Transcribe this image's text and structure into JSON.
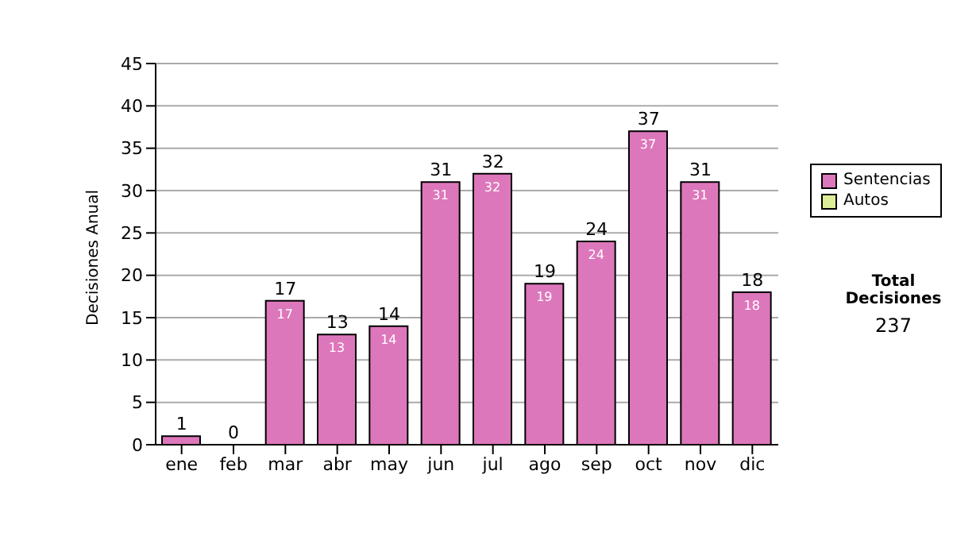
{
  "chart_data": {
    "type": "bar",
    "ylabel": "Decisiones Anual",
    "categories": [
      "ene",
      "feb",
      "mar",
      "abr",
      "may",
      "jun",
      "jul",
      "ago",
      "sep",
      "oct",
      "nov",
      "dic"
    ],
    "series": [
      {
        "name": "Sentencias",
        "color": "#dd77bb",
        "values": [
          1,
          0,
          17,
          13,
          14,
          31,
          32,
          19,
          24,
          37,
          31,
          18
        ],
        "value_labels": [
          null,
          null,
          "17",
          "13",
          "14",
          "31",
          "32",
          "19",
          "24",
          "37",
          "31",
          "18"
        ]
      },
      {
        "name": "Autos",
        "color": "#ddee99",
        "values": [
          null,
          null,
          null,
          null,
          null,
          null,
          null,
          null,
          null,
          null,
          null,
          null
        ]
      }
    ],
    "stacked": true,
    "ylim": [
      0,
      45
    ],
    "yticks": [
      0,
      5,
      10,
      15,
      20,
      25,
      30,
      35,
      40,
      45
    ],
    "grid": "y",
    "legend": "right",
    "totals": [
      "1",
      "0",
      "17",
      "13",
      "14",
      "31",
      "32",
      "19",
      "24",
      "37",
      "31",
      "18"
    ],
    "annotations": [
      "Total Decisiones",
      "237"
    ]
  }
}
